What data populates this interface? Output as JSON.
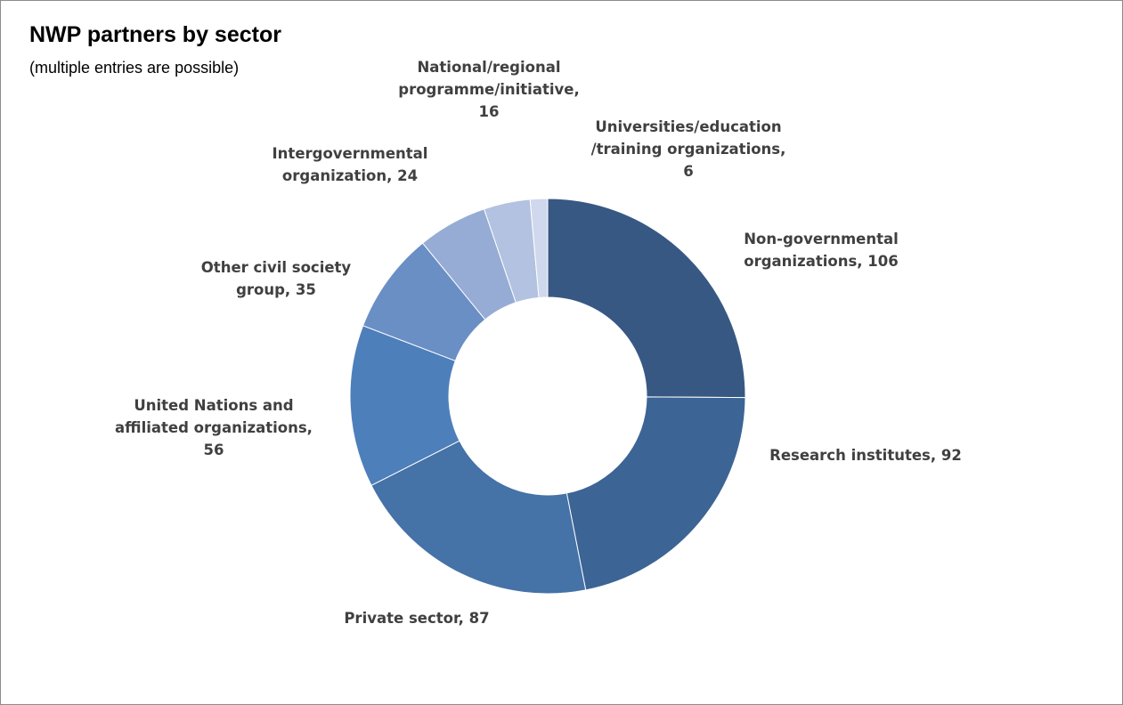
{
  "chart_data": {
    "type": "pie",
    "variant": "doughnut",
    "title": "NWP partners by sector",
    "subtitle": "(multiple entries are possible)",
    "legend": "none",
    "slices": [
      {
        "label": "Non-governmental organizations",
        "value": 106,
        "color": "#385884",
        "text_lines": [
          "Non-governmental",
          "organizations, 106"
        ]
      },
      {
        "label": "Research institutes",
        "value": 92,
        "color": "#3c6495",
        "text_lines": [
          "Research institutes, 92"
        ]
      },
      {
        "label": "Private sector",
        "value": 87,
        "color": "#4572a7",
        "text_lines": [
          "Private sector, 87"
        ]
      },
      {
        "label": "United Nations and affiliated organizations",
        "value": 56,
        "color": "#4d7fbb",
        "text_lines": [
          "United Nations and",
          "affiliated organizations,",
          "56"
        ]
      },
      {
        "label": "Other civil society group",
        "value": 35,
        "color": "#6a8fc5",
        "text_lines": [
          "Other civil society",
          "group, 35"
        ]
      },
      {
        "label": "Intergovernmental organization",
        "value": 24,
        "color": "#96acd4",
        "text_lines": [
          "Intergovernmental",
          "organization, 24"
        ]
      },
      {
        "label": "National/regional programme/initiative",
        "value": 16,
        "color": "#b2c2e0",
        "text_lines": [
          "National/regional",
          "programme/initiative,",
          "16"
        ]
      },
      {
        "label": "Universities/education/training organizations",
        "value": 6,
        "color": "#cfd8ec",
        "text_lines": [
          "Universities/education",
          "/training organizations,",
          "6"
        ]
      }
    ]
  }
}
